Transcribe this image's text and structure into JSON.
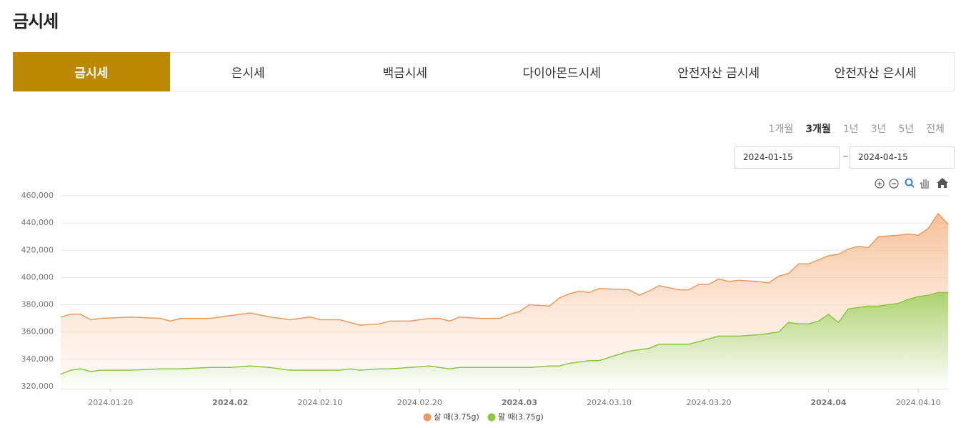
{
  "header": {
    "title": "금시세"
  },
  "tabs": [
    {
      "label": "금시세",
      "active": true
    },
    {
      "label": "은시세",
      "active": false
    },
    {
      "label": "백금시세",
      "active": false
    },
    {
      "label": "다이아몬드시세",
      "active": false
    },
    {
      "label": "안전자산 금시세",
      "active": false
    },
    {
      "label": "안전자산 은시세",
      "active": false
    }
  ],
  "periods": [
    {
      "label": "1개월",
      "active": false
    },
    {
      "label": "3개월",
      "active": true
    },
    {
      "label": "1년",
      "active": false
    },
    {
      "label": "3년",
      "active": false
    },
    {
      "label": "5년",
      "active": false
    },
    {
      "label": "전체",
      "active": false
    }
  ],
  "date_range": {
    "start": "2024-01-15",
    "separator": "~",
    "end": "2024-04-15"
  },
  "chart_data": {
    "type": "area",
    "x": [
      "2024-01-15",
      "2024-01-16",
      "2024-01-17",
      "2024-01-18",
      "2024-01-19",
      "2024-01-22",
      "2024-01-25",
      "2024-01-26",
      "2024-01-27",
      "2024-01-30",
      "2024-02-01",
      "2024-02-03",
      "2024-02-05",
      "2024-02-07",
      "2024-02-09",
      "2024-02-10",
      "2024-02-12",
      "2024-02-13",
      "2024-02-14",
      "2024-02-16",
      "2024-02-17",
      "2024-02-19",
      "2024-02-21",
      "2024-02-22",
      "2024-02-23",
      "2024-02-24",
      "2024-02-26",
      "2024-02-28",
      "2024-02-29",
      "2024-03-01",
      "2024-03-02",
      "2024-03-04",
      "2024-03-05",
      "2024-03-06",
      "2024-03-07",
      "2024-03-08",
      "2024-03-09",
      "2024-03-12",
      "2024-03-13",
      "2024-03-14",
      "2024-03-15",
      "2024-03-17",
      "2024-03-18",
      "2024-03-19",
      "2024-03-20",
      "2024-03-21",
      "2024-03-22",
      "2024-03-23",
      "2024-03-25",
      "2024-03-26",
      "2024-03-27",
      "2024-03-28",
      "2024-03-29",
      "2024-03-30",
      "2024-03-31",
      "2024-04-01",
      "2024-04-02",
      "2024-04-03",
      "2024-04-04",
      "2024-04-05",
      "2024-04-06",
      "2024-04-08",
      "2024-04-09",
      "2024-04-10",
      "2024-04-11",
      "2024-04-12",
      "2024-04-13"
    ],
    "series": [
      {
        "name": "살 때(3.75g)",
        "color": "#ec9a5a",
        "fill": "#f6b98b",
        "values": [
          371000,
          373000,
          373000,
          369000,
          370000,
          371000,
          370000,
          368000,
          370000,
          370000,
          372000,
          374000,
          371000,
          369000,
          371000,
          369000,
          369000,
          367000,
          365000,
          366000,
          368000,
          368000,
          370000,
          370000,
          368000,
          371000,
          370000,
          370000,
          373000,
          375000,
          380000,
          379000,
          385000,
          388000,
          390000,
          389000,
          392000,
          391000,
          387000,
          390000,
          394000,
          391000,
          391000,
          395000,
          395000,
          399000,
          397000,
          398000,
          397000,
          396000,
          401000,
          403000,
          410000,
          410000,
          413000,
          416000,
          417000,
          421000,
          423000,
          422000,
          430000,
          431000,
          432000,
          431000,
          436000,
          447000,
          439000
        ]
      },
      {
        "name": "팔 때(3.75g)",
        "color": "#8cc63f",
        "fill": "#a9d16a",
        "values": [
          329000,
          332000,
          333000,
          331000,
          332000,
          332000,
          333000,
          333000,
          333000,
          334000,
          334000,
          335000,
          334000,
          332000,
          332000,
          332000,
          332000,
          333000,
          332000,
          333000,
          333000,
          334000,
          335000,
          334000,
          333000,
          334000,
          334000,
          334000,
          334000,
          334000,
          334000,
          335000,
          335000,
          337000,
          338000,
          339000,
          339000,
          346000,
          347000,
          348000,
          351000,
          351000,
          351000,
          353000,
          355000,
          357000,
          357000,
          357000,
          358000,
          359000,
          360000,
          367000,
          366000,
          366000,
          368000,
          373000,
          367000,
          377000,
          378000,
          379000,
          379000,
          381000,
          384000,
          386000,
          387000,
          389000,
          389000
        ]
      }
    ],
    "xlim": [
      "2024-01-15",
      "2024-04-13"
    ],
    "xticks": [
      {
        "value": "2024-01-20",
        "label": "2024.01.20",
        "bold": false
      },
      {
        "value": "2024-02-01",
        "label": "2024.02",
        "bold": true
      },
      {
        "value": "2024-02-10",
        "label": "2024.02.10",
        "bold": false
      },
      {
        "value": "2024-02-20",
        "label": "2024.02.20",
        "bold": false
      },
      {
        "value": "2024-03-01",
        "label": "2024.03",
        "bold": true
      },
      {
        "value": "2024-03-10",
        "label": "2024.03.10",
        "bold": false
      },
      {
        "value": "2024-03-20",
        "label": "2024.03.20",
        "bold": false
      },
      {
        "value": "2024-04-01",
        "label": "2024.04",
        "bold": true
      },
      {
        "value": "2024-04-10",
        "label": "2024.04.10",
        "bold": false
      }
    ],
    "ylim": [
      318400,
      460000
    ],
    "yticks": [
      {
        "value": 320000,
        "label": "320,000"
      },
      {
        "value": 340000,
        "label": "340,000"
      },
      {
        "value": 360000,
        "label": "360,000"
      },
      {
        "value": 380000,
        "label": "380,000"
      },
      {
        "value": 400000,
        "label": "400,000"
      },
      {
        "value": 420000,
        "label": "420,000"
      },
      {
        "value": 440000,
        "label": "440,000"
      },
      {
        "value": 460000,
        "label": "460,000"
      }
    ],
    "grid": true
  }
}
